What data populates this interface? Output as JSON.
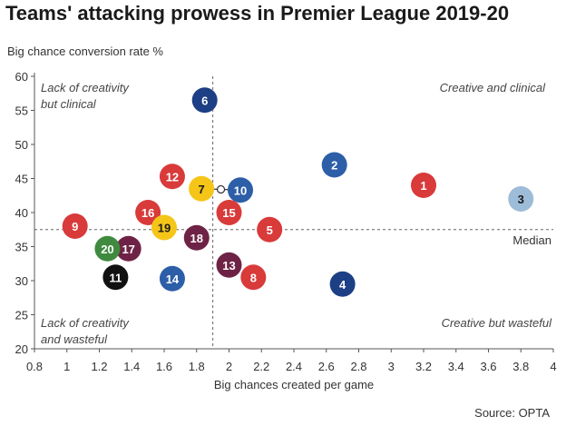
{
  "header": {
    "title": "Teams' attacking prowess in Premier League 2019-20",
    "source": "Source: OPTA"
  },
  "chart_data": {
    "type": "scatter",
    "title": "Teams' attacking prowess in Premier League 2019-20",
    "xlabel": "Big chances created per game",
    "ylabel": "Big chance conversion rate %",
    "xlim": [
      0.8,
      4
    ],
    "ylim": [
      20,
      60
    ],
    "x_ticks": [
      "0.8",
      "1",
      "1.2",
      "1.4",
      "1.6",
      "1.8",
      "2",
      "2.2",
      "2.4",
      "2.6",
      "2.8",
      "3",
      "3.2",
      "3.4",
      "3.6",
      "3.8",
      "4"
    ],
    "y_ticks": [
      "20",
      "25",
      "30",
      "35",
      "40",
      "45",
      "50",
      "55",
      "60"
    ],
    "grid": false,
    "median_x": 1.9,
    "median_y": 37.5,
    "median_label": "Median",
    "quadrant_labels": {
      "top_left": [
        "Lack of creativity",
        "but clinical"
      ],
      "top_right": [
        "Creative and clinical"
      ],
      "bottom_left": [
        "Lack of creativity",
        "and wasteful"
      ],
      "bottom_right": [
        "Creative but wasteful"
      ]
    },
    "points": [
      {
        "label": "1",
        "x": 3.2,
        "y": 44,
        "color": "#d93a3a",
        "text_color": "#ffffff"
      },
      {
        "label": "2",
        "x": 2.65,
        "y": 47,
        "color": "#2d5ea8",
        "text_color": "#ffffff"
      },
      {
        "label": "3",
        "x": 3.8,
        "y": 42,
        "color": "#9dbcd8",
        "text_color": "#1a1a1a"
      },
      {
        "label": "4",
        "x": 2.7,
        "y": 29.5,
        "color": "#1c3f85",
        "text_color": "#ffffff"
      },
      {
        "label": "5",
        "x": 2.25,
        "y": 37.5,
        "color": "#d93a3a",
        "text_color": "#ffffff"
      },
      {
        "label": "6",
        "x": 1.85,
        "y": 56.5,
        "color": "#1c3f85",
        "text_color": "#ffffff"
      },
      {
        "label": "7",
        "x": 1.83,
        "y": 43.5,
        "color": "#f5c518",
        "text_color": "#1a1a1a"
      },
      {
        "label": "8",
        "x": 2.15,
        "y": 30.5,
        "color": "#d93a3a",
        "text_color": "#ffffff"
      },
      {
        "label": "9",
        "x": 1.05,
        "y": 38,
        "color": "#d93a3a",
        "text_color": "#ffffff"
      },
      {
        "label": "10",
        "x": 2.07,
        "y": 43.3,
        "color": "#2d5ea8",
        "text_color": "#ffffff"
      },
      {
        "label": "11",
        "x": 1.3,
        "y": 30.5,
        "color": "#111111",
        "text_color": "#ffffff"
      },
      {
        "label": "12",
        "x": 1.65,
        "y": 45.3,
        "color": "#d93a3a",
        "text_color": "#ffffff"
      },
      {
        "label": "13",
        "x": 2.0,
        "y": 32.3,
        "color": "#6e2346",
        "text_color": "#ffffff"
      },
      {
        "label": "14",
        "x": 1.65,
        "y": 30.3,
        "color": "#2d5ea8",
        "text_color": "#ffffff"
      },
      {
        "label": "15",
        "x": 2.0,
        "y": 40,
        "color": "#d93a3a",
        "text_color": "#ffffff"
      },
      {
        "label": "16",
        "x": 1.5,
        "y": 40,
        "color": "#d93a3a",
        "text_color": "#ffffff"
      },
      {
        "label": "17",
        "x": 1.38,
        "y": 34.7,
        "color": "#6e2346",
        "text_color": "#ffffff"
      },
      {
        "label": "18",
        "x": 1.8,
        "y": 36.3,
        "color": "#6e2346",
        "text_color": "#ffffff"
      },
      {
        "label": "19",
        "x": 1.6,
        "y": 37.8,
        "color": "#f5c518",
        "text_color": "#1a1a1a"
      },
      {
        "label": "20",
        "x": 1.25,
        "y": 34.7,
        "color": "#3f8a3f",
        "text_color": "#ffffff"
      }
    ],
    "connector": {
      "from": "7",
      "to": "10"
    }
  }
}
